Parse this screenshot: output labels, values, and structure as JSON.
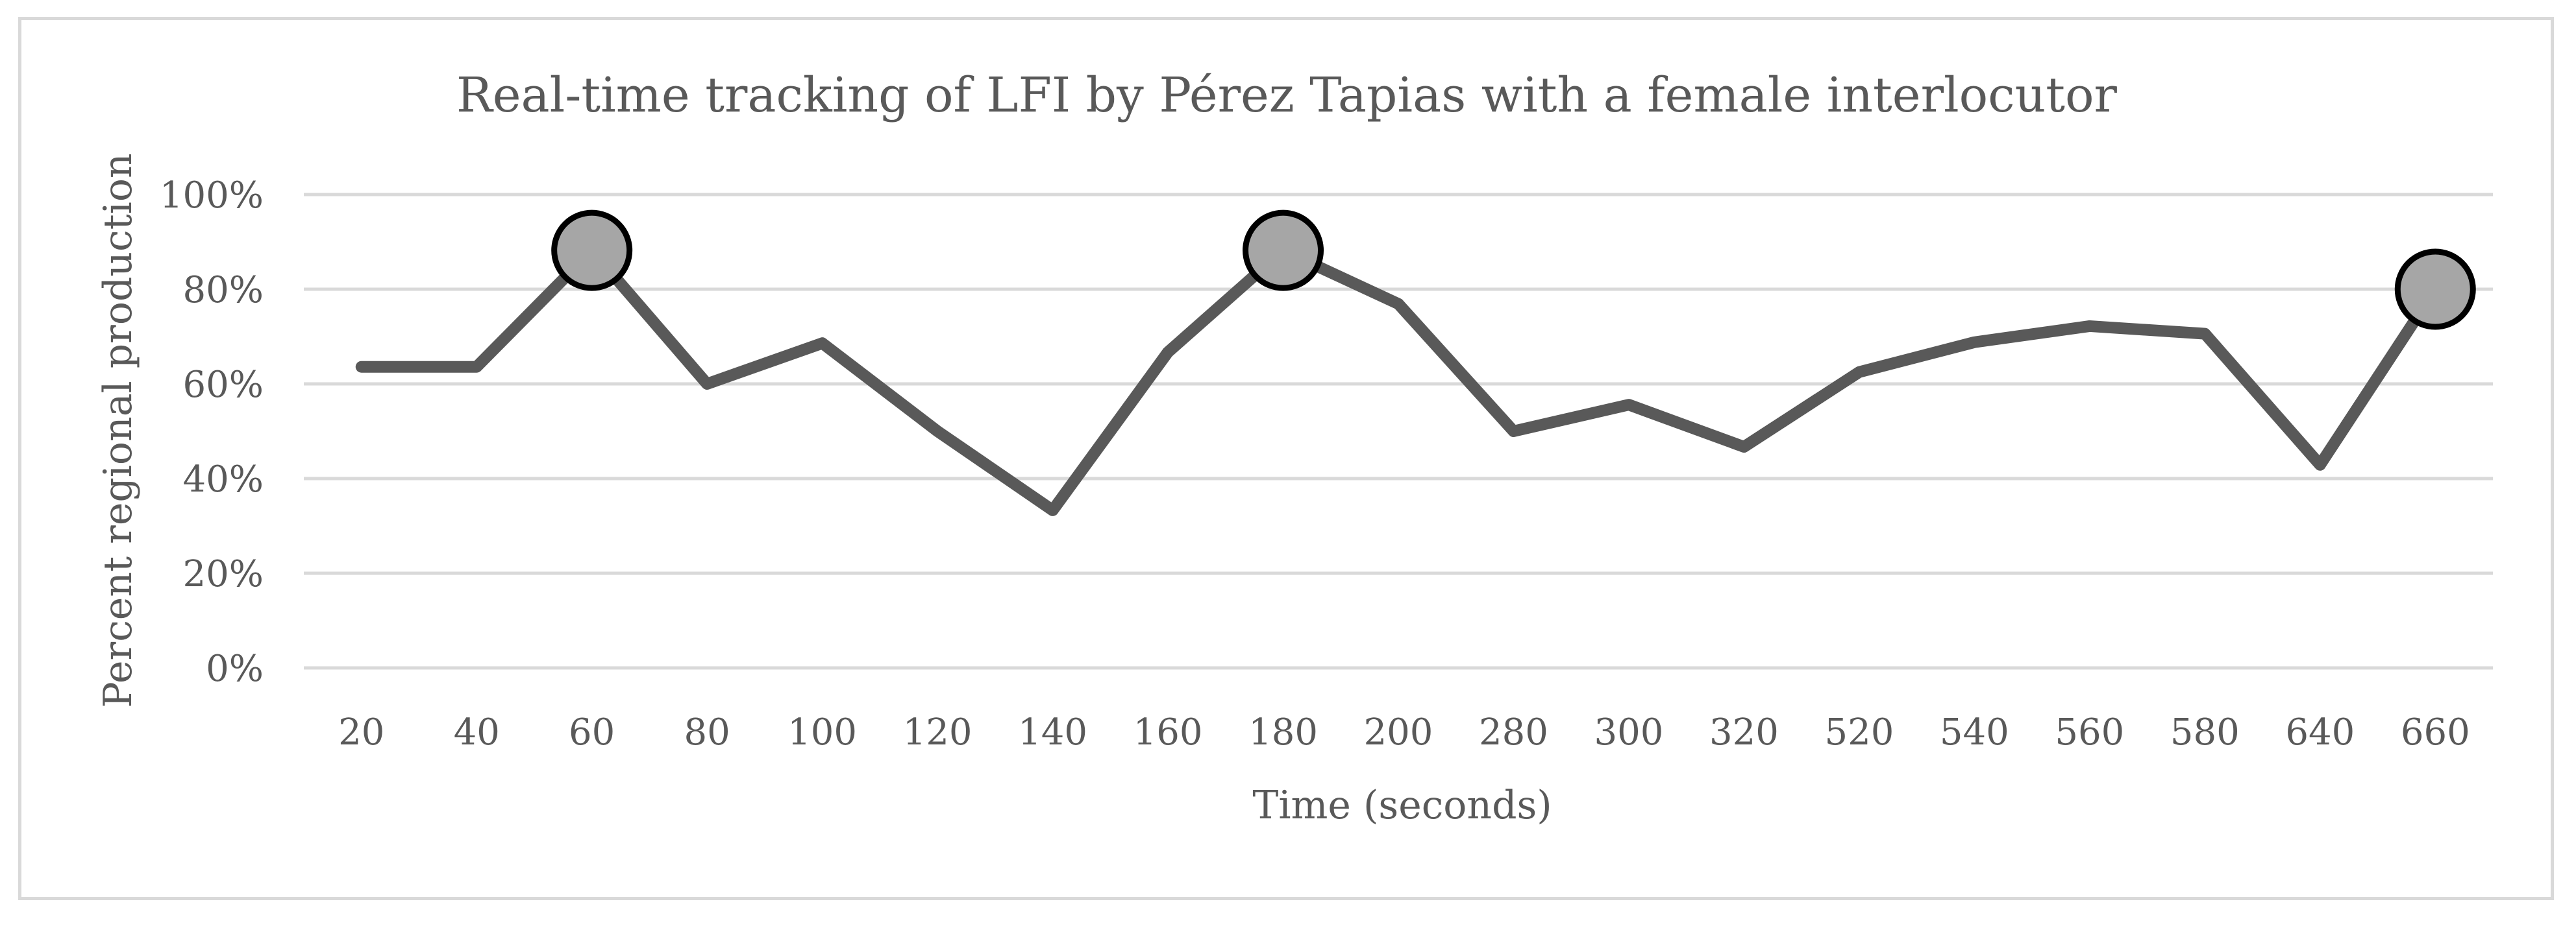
{
  "chart_data": {
    "type": "line",
    "title": "Real-time tracking of LFI by Pérez Tapias with a female interlocutor",
    "xlabel": "Time (seconds)",
    "ylabel": "Percent regional production",
    "categories": [
      "20",
      "40",
      "60",
      "80",
      "100",
      "120",
      "140",
      "160",
      "180",
      "200",
      "280",
      "300",
      "320",
      "520",
      "540",
      "560",
      "580",
      "640",
      "660"
    ],
    "values": [
      63.6,
      63.6,
      88.2,
      60.0,
      68.6,
      50.0,
      33.3,
      66.7,
      88.2,
      76.9,
      50.0,
      55.6,
      46.7,
      62.5,
      68.8,
      72.2,
      70.6,
      42.9,
      80.0
    ],
    "highlighted_categories": [
      "60",
      "180",
      "660"
    ],
    "ylim": [
      0,
      100
    ],
    "yticks": [
      "0%",
      "20%",
      "40%",
      "60%",
      "80%",
      "100%"
    ],
    "grid": true,
    "legend": "none",
    "colors": {
      "line": "#595959",
      "marker_fill": "#a6a6a6",
      "marker_stroke": "#000000",
      "grid": "#d9d9d9",
      "text": "#595959",
      "frame": "#d9d9d9"
    }
  }
}
